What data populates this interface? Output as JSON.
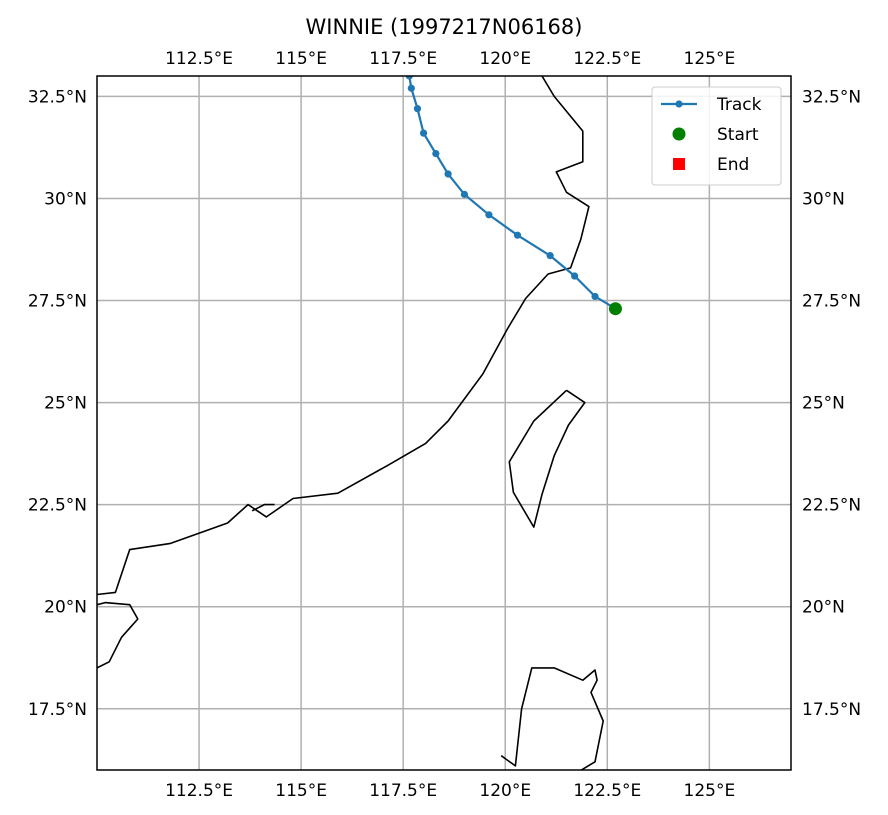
{
  "chart_data": {
    "type": "map",
    "title": "WINNIE (1997217N06168)",
    "lon_range": [
      110,
      127
    ],
    "lat_range": [
      16,
      33
    ],
    "lon_ticks": [
      {
        "value": 112.5,
        "label": "112.5°E"
      },
      {
        "value": 115,
        "label": "115°E"
      },
      {
        "value": 117.5,
        "label": "117.5°E"
      },
      {
        "value": 120,
        "label": "120°E"
      },
      {
        "value": 122.5,
        "label": "122.5°E"
      },
      {
        "value": 125,
        "label": "125°E"
      }
    ],
    "lat_ticks": [
      {
        "value": 17.5,
        "label": "17.5°N"
      },
      {
        "value": 20,
        "label": "20°N"
      },
      {
        "value": 22.5,
        "label": "22.5°N"
      },
      {
        "value": 25,
        "label": "25°N"
      },
      {
        "value": 27.5,
        "label": "27.5°N"
      },
      {
        "value": 30,
        "label": "30°N"
      },
      {
        "value": 32.5,
        "label": "32.5°N"
      }
    ],
    "grid": true,
    "legend": {
      "placement": "top-right",
      "entries": [
        {
          "label": "Track",
          "marker": "line-dot",
          "color": "#1f77b4"
        },
        {
          "label": "Start",
          "marker": "circle",
          "color": "#008000"
        },
        {
          "label": "End",
          "marker": "square",
          "color": "#ff0000"
        }
      ]
    },
    "track": {
      "name": "Track",
      "color": "#1f77b4",
      "points": [
        [
          122.7,
          27.3
        ],
        [
          122.2,
          27.6
        ],
        [
          121.7,
          28.1
        ],
        [
          121.1,
          28.6
        ],
        [
          120.3,
          29.1
        ],
        [
          119.6,
          29.6
        ],
        [
          119.0,
          30.1
        ],
        [
          118.6,
          30.6
        ],
        [
          118.3,
          31.1
        ],
        [
          118.0,
          31.6
        ],
        [
          117.85,
          32.2
        ],
        [
          117.7,
          32.7
        ],
        [
          117.65,
          33.0
        ]
      ]
    },
    "start": {
      "lon": 122.7,
      "lat": 27.3,
      "color": "#008000"
    },
    "end": {
      "lon": 117.65,
      "lat": 33.0,
      "color": "#ff0000"
    },
    "coastlines": [
      [
        [
          110.0,
          20.3
        ],
        [
          110.45,
          20.35
        ],
        [
          110.8,
          21.4
        ],
        [
          111.8,
          21.55
        ],
        [
          113.2,
          22.05
        ],
        [
          113.7,
          22.5
        ],
        [
          114.15,
          22.2
        ],
        [
          114.8,
          22.65
        ],
        [
          115.9,
          22.78
        ],
        [
          117.1,
          23.45
        ],
        [
          118.05,
          24.0
        ],
        [
          118.6,
          24.55
        ],
        [
          119.45,
          25.7
        ],
        [
          120.05,
          26.8
        ],
        [
          120.5,
          27.55
        ],
        [
          121.05,
          28.15
        ],
        [
          121.6,
          28.3
        ],
        [
          121.85,
          29.0
        ],
        [
          122.05,
          29.8
        ],
        [
          121.5,
          30.15
        ],
        [
          121.25,
          30.65
        ],
        [
          121.9,
          30.9
        ],
        [
          121.9,
          31.65
        ],
        [
          121.2,
          32.5
        ],
        [
          120.9,
          33.0
        ]
      ],
      [
        [
          110.0,
          20.05
        ],
        [
          110.2,
          20.1
        ],
        [
          110.8,
          20.05
        ],
        [
          111.0,
          19.7
        ],
        [
          110.6,
          19.25
        ],
        [
          110.3,
          18.65
        ],
        [
          110.0,
          18.5
        ]
      ],
      [
        [
          121.5,
          25.3
        ],
        [
          121.95,
          25.0
        ],
        [
          121.55,
          24.45
        ],
        [
          121.2,
          23.7
        ],
        [
          120.9,
          22.75
        ],
        [
          120.7,
          21.95
        ],
        [
          120.2,
          22.8
        ],
        [
          120.1,
          23.55
        ],
        [
          120.7,
          24.55
        ],
        [
          121.5,
          25.3
        ]
      ],
      [
        [
          119.9,
          16.35
        ],
        [
          120.25,
          16.1
        ],
        [
          120.4,
          17.5
        ],
        [
          120.65,
          18.5
        ],
        [
          121.2,
          18.5
        ],
        [
          121.9,
          18.2
        ],
        [
          122.2,
          18.45
        ],
        [
          122.25,
          18.2
        ],
        [
          122.1,
          17.9
        ],
        [
          122.4,
          17.2
        ],
        [
          122.2,
          16.2
        ],
        [
          121.7,
          15.9
        ]
      ],
      [
        [
          113.8,
          22.35
        ],
        [
          114.1,
          22.5
        ],
        [
          114.35,
          22.5
        ]
      ]
    ]
  }
}
